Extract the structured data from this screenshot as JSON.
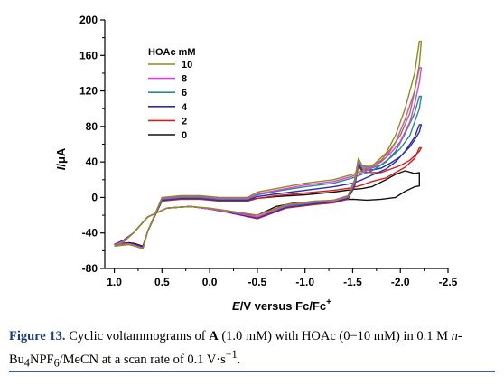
{
  "chart_data": {
    "type": "line",
    "title": "",
    "xlabel": {
      "italic": "E",
      "rest": "/V versus Fc/Fc",
      "sup": "+"
    },
    "ylabel": {
      "italic": "I",
      "rest": "/μA"
    },
    "xlim": [
      1.1,
      -2.5
    ],
    "ylim": [
      -80,
      200
    ],
    "x_ticks": [
      1.0,
      0.5,
      0.0,
      -0.5,
      -1.0,
      -1.5,
      -2.0,
      -2.5
    ],
    "x_tick_labels": [
      "1.0",
      "0.5",
      "0.0",
      "-0.5",
      "-1.0",
      "-1.5",
      "-2.0",
      "-2.5"
    ],
    "y_ticks": [
      -80,
      -40,
      0,
      40,
      80,
      120,
      160,
      200
    ],
    "y_tick_labels": [
      "-80",
      "-40",
      "0",
      "40",
      "80",
      "120",
      "160",
      "200"
    ],
    "x_reversed": true,
    "legend": {
      "title": "HOAc mM",
      "position": "upper-left"
    },
    "series": [
      {
        "name": "10",
        "color": "#8c8c1e",
        "x": [
          1.0,
          0.9,
          0.8,
          0.65,
          0.45,
          0.2,
          0.0,
          -0.2,
          -0.5,
          -0.8,
          -1.1,
          -1.3,
          -1.45,
          -1.52,
          -1.56,
          -1.6,
          -1.7,
          -1.8,
          -1.9,
          -2.0,
          -2.1,
          -2.15,
          -2.2,
          -2.22,
          -2.2,
          -2.15,
          -2.05,
          -1.95,
          -1.85,
          -1.7,
          -1.6,
          -1.5,
          -1.3,
          -1.0,
          -0.7,
          -0.5,
          -0.4,
          -0.1,
          0.1,
          0.3,
          0.5,
          0.65,
          0.7,
          0.78,
          0.85,
          1.0
        ],
        "y": [
          -55,
          -50,
          -40,
          -22,
          -12,
          -10,
          -12,
          -15,
          -20,
          -8,
          -4,
          -3,
          2,
          20,
          44,
          36,
          36,
          42,
          55,
          70,
          95,
          120,
          150,
          176,
          176,
          140,
          100,
          70,
          50,
          35,
          30,
          26,
          20,
          16,
          10,
          6,
          0,
          0,
          2,
          2,
          0,
          -38,
          -58,
          -55,
          -53,
          -55
        ]
      },
      {
        "name": "8",
        "color": "#e040e0",
        "x": [
          1.0,
          0.9,
          0.8,
          0.65,
          0.45,
          0.2,
          0.0,
          -0.2,
          -0.5,
          -0.8,
          -1.1,
          -1.3,
          -1.45,
          -1.52,
          -1.56,
          -1.6,
          -1.7,
          -1.8,
          -1.9,
          -2.0,
          -2.1,
          -2.15,
          -2.2,
          -2.22,
          -2.2,
          -2.15,
          -2.05,
          -1.95,
          -1.85,
          -1.7,
          -1.6,
          -1.5,
          -1.3,
          -1.0,
          -0.7,
          -0.5,
          -0.4,
          -0.1,
          0.1,
          0.3,
          0.5,
          0.65,
          0.7,
          0.78,
          0.85,
          1.0
        ],
        "y": [
          -54,
          -49,
          -40,
          -22,
          -12,
          -10,
          -13,
          -16,
          -22,
          -9,
          -5,
          -4,
          1,
          18,
          42,
          35,
          34,
          40,
          50,
          63,
          85,
          105,
          130,
          146,
          146,
          120,
          88,
          62,
          45,
          33,
          28,
          24,
          18,
          14,
          8,
          4,
          -1,
          -1,
          1,
          1,
          -1,
          -38,
          -57,
          -54,
          -52,
          -54
        ]
      },
      {
        "name": "6",
        "color": "#2a8a8a",
        "x": [
          1.0,
          0.9,
          0.8,
          0.65,
          0.45,
          0.2,
          0.0,
          -0.2,
          -0.5,
          -0.8,
          -1.1,
          -1.3,
          -1.45,
          -1.52,
          -1.56,
          -1.6,
          -1.7,
          -1.8,
          -1.9,
          -2.0,
          -2.1,
          -2.15,
          -2.2,
          -2.22,
          -2.2,
          -2.15,
          -2.05,
          -1.95,
          -1.85,
          -1.7,
          -1.6,
          -1.5,
          -1.3,
          -1.0,
          -0.7,
          -0.5,
          -0.4,
          -0.1,
          0.1,
          0.3,
          0.5,
          0.65,
          0.7,
          0.78,
          0.85,
          1.0
        ],
        "y": [
          -54,
          -49,
          -40,
          -22,
          -12,
          -10,
          -13,
          -16,
          -22,
          -10,
          -6,
          -4,
          0,
          16,
          40,
          33,
          33,
          37,
          45,
          55,
          70,
          85,
          100,
          114,
          114,
          95,
          72,
          52,
          40,
          30,
          26,
          22,
          16,
          12,
          7,
          3,
          -2,
          -2,
          0,
          0,
          -2,
          -38,
          -57,
          -54,
          -52,
          -54
        ]
      },
      {
        "name": "4",
        "color": "#2a2ab0",
        "x": [
          1.0,
          0.9,
          0.8,
          0.65,
          0.45,
          0.2,
          0.0,
          -0.2,
          -0.5,
          -0.8,
          -1.1,
          -1.3,
          -1.45,
          -1.52,
          -1.56,
          -1.6,
          -1.7,
          -1.8,
          -1.9,
          -2.0,
          -2.1,
          -2.15,
          -2.2,
          -2.22,
          -2.2,
          -2.15,
          -2.05,
          -1.95,
          -1.85,
          -1.7,
          -1.6,
          -1.5,
          -1.3,
          -1.0,
          -0.7,
          -0.5,
          -0.4,
          -0.1,
          0.1,
          0.3,
          0.5,
          0.65,
          0.7,
          0.78,
          0.85,
          1.0
        ],
        "y": [
          -53,
          -48,
          -40,
          -22,
          -12,
          -10,
          -13,
          -17,
          -23,
          -11,
          -7,
          -5,
          -1,
          14,
          38,
          31,
          31,
          33,
          39,
          46,
          57,
          65,
          74,
          82,
          82,
          68,
          52,
          40,
          32,
          25,
          20,
          16,
          12,
          8,
          4,
          1,
          -3,
          -3,
          -1,
          -1,
          -3,
          -38,
          -56,
          -53,
          -52,
          -53
        ]
      },
      {
        "name": "2",
        "color": "#d11f1f",
        "x": [
          1.0,
          0.9,
          0.8,
          0.65,
          0.45,
          0.2,
          0.0,
          -0.2,
          -0.5,
          -0.8,
          -1.1,
          -1.3,
          -1.45,
          -1.52,
          -1.56,
          -1.6,
          -1.7,
          -1.8,
          -1.9,
          -2.0,
          -2.1,
          -2.15,
          -2.2,
          -2.22,
          -2.2,
          -2.15,
          -2.05,
          -1.95,
          -1.85,
          -1.7,
          -1.6,
          -1.5,
          -1.3,
          -1.0,
          -0.7,
          -0.5,
          -0.4,
          -0.1,
          0.1,
          0.3,
          0.5,
          0.65,
          0.7,
          0.78,
          0.85,
          1.0
        ],
        "y": [
          -53,
          -48,
          -40,
          -22,
          -12,
          -10,
          -13,
          -17,
          -24,
          -12,
          -8,
          -6,
          -2,
          12,
          36,
          29,
          28,
          28,
          32,
          36,
          42,
          47,
          52,
          56,
          56,
          44,
          34,
          28,
          22,
          18,
          14,
          11,
          8,
          5,
          2,
          -1,
          -4,
          -4,
          -2,
          -2,
          -4,
          -38,
          -56,
          -53,
          -52,
          -53
        ]
      },
      {
        "name": "0",
        "color": "#111111",
        "x": [
          1.0,
          0.9,
          0.8,
          0.65,
          0.45,
          0.2,
          0.0,
          -0.2,
          -0.5,
          -0.7,
          -0.9,
          -1.1,
          -1.3,
          -1.5,
          -1.65,
          -1.8,
          -1.95,
          -2.05,
          -2.15,
          -2.2,
          -2.2,
          -2.15,
          -2.05,
          -1.95,
          -1.85,
          -1.7,
          -1.6,
          -1.5,
          -1.3,
          -1.0,
          -0.7,
          -0.5,
          -0.4,
          -0.1,
          0.1,
          0.3,
          0.5,
          0.65,
          0.7,
          0.78,
          0.85,
          1.0
        ],
        "y": [
          -53,
          -48,
          -40,
          -22,
          -12,
          -10,
          -13,
          -16,
          -20,
          -10,
          -6,
          -5,
          -3,
          -2,
          -3,
          -2,
          0,
          7,
          12,
          13,
          28,
          27,
          30,
          26,
          20,
          12,
          10,
          9,
          6,
          3,
          1,
          -1,
          -3,
          -3,
          -1,
          -1,
          -3,
          -38,
          -55,
          -52,
          -51,
          -53
        ]
      }
    ]
  },
  "caption": {
    "lead": "Figure 13.",
    "t1": " Cyclic voltammograms of ",
    "compound": "A",
    "t2": " (1.0 mM) with HOAc (0−10 mM) in 0.1 M ",
    "n_italic": "n",
    "t3": "-Bu",
    "sub4": "4",
    "t4": "NPF",
    "sub6": "6",
    "t5": "/MeCN at a scan rate of 0.1 V·s",
    "sup": "−1",
    "t6": "."
  }
}
